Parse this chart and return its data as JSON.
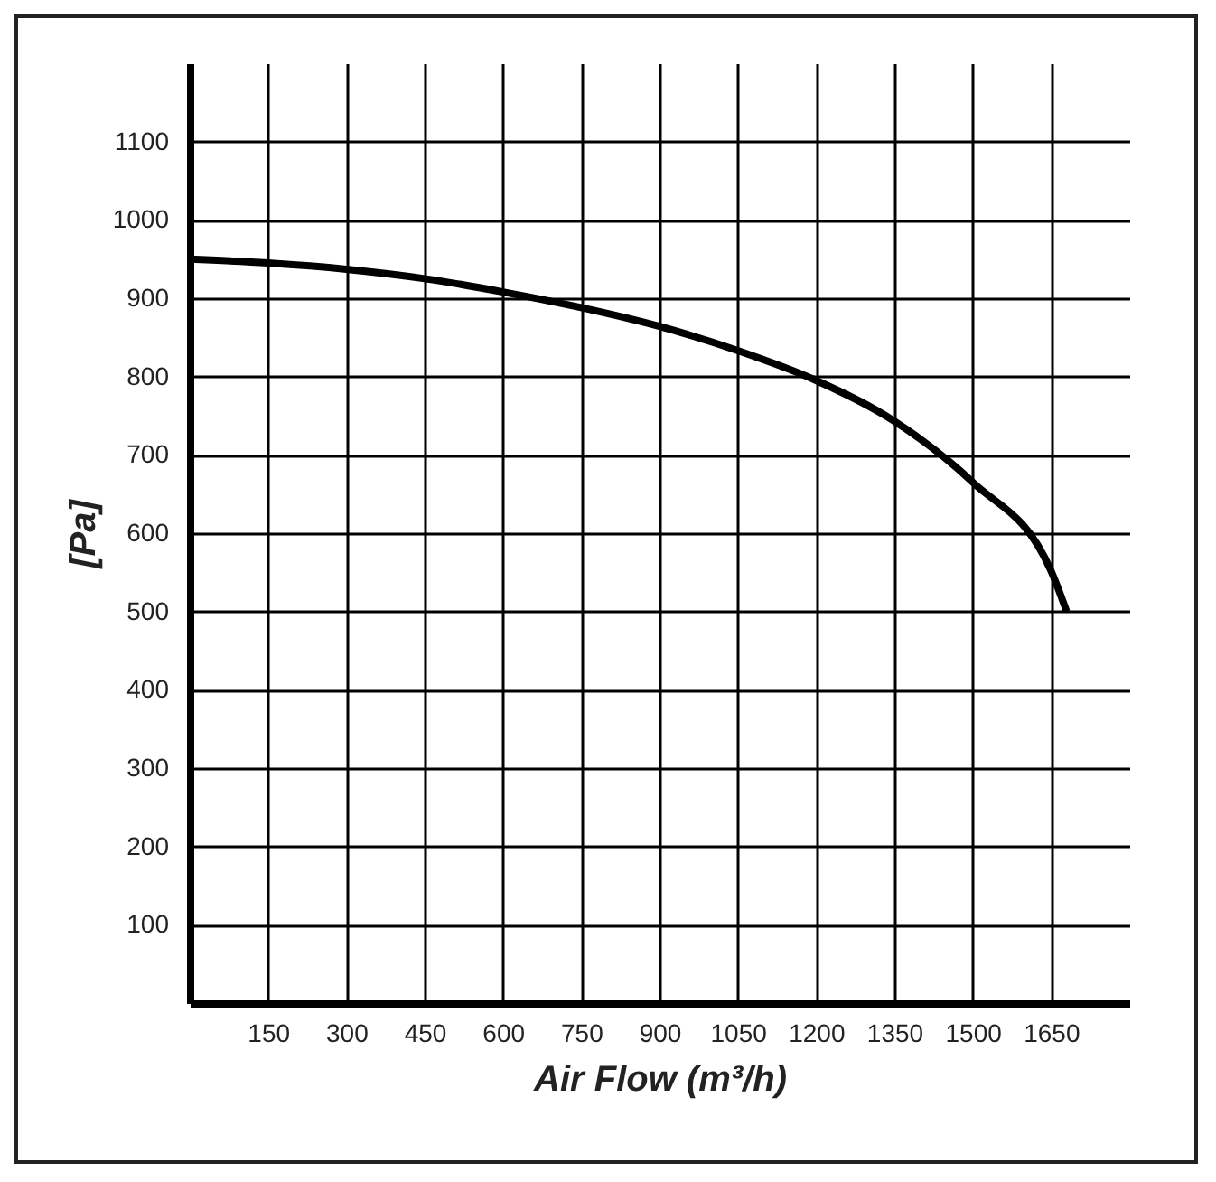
{
  "chart_data": {
    "type": "line",
    "xlabel": "Air Flow (m³/h)",
    "ylabel": "[Pa]",
    "x": [
      0,
      150,
      300,
      450,
      600,
      750,
      900,
      1050,
      1200,
      1350,
      1500,
      1650,
      1680
    ],
    "series": [
      {
        "color": "#000000",
        "values": [
          950,
          945,
          937,
          925,
          908,
          888,
          864,
          833,
          795,
          743,
          665,
          552,
          500
        ]
      }
    ],
    "xlim": [
      0,
      1800
    ],
    "xticks": [
      150,
      300,
      450,
      600,
      750,
      900,
      1050,
      1200,
      1350,
      1500,
      1650
    ],
    "ylim": [
      0,
      1200
    ],
    "yticks": [
      100,
      200,
      300,
      400,
      500,
      600,
      700,
      800,
      900,
      1000,
      1100
    ],
    "grid": true
  }
}
